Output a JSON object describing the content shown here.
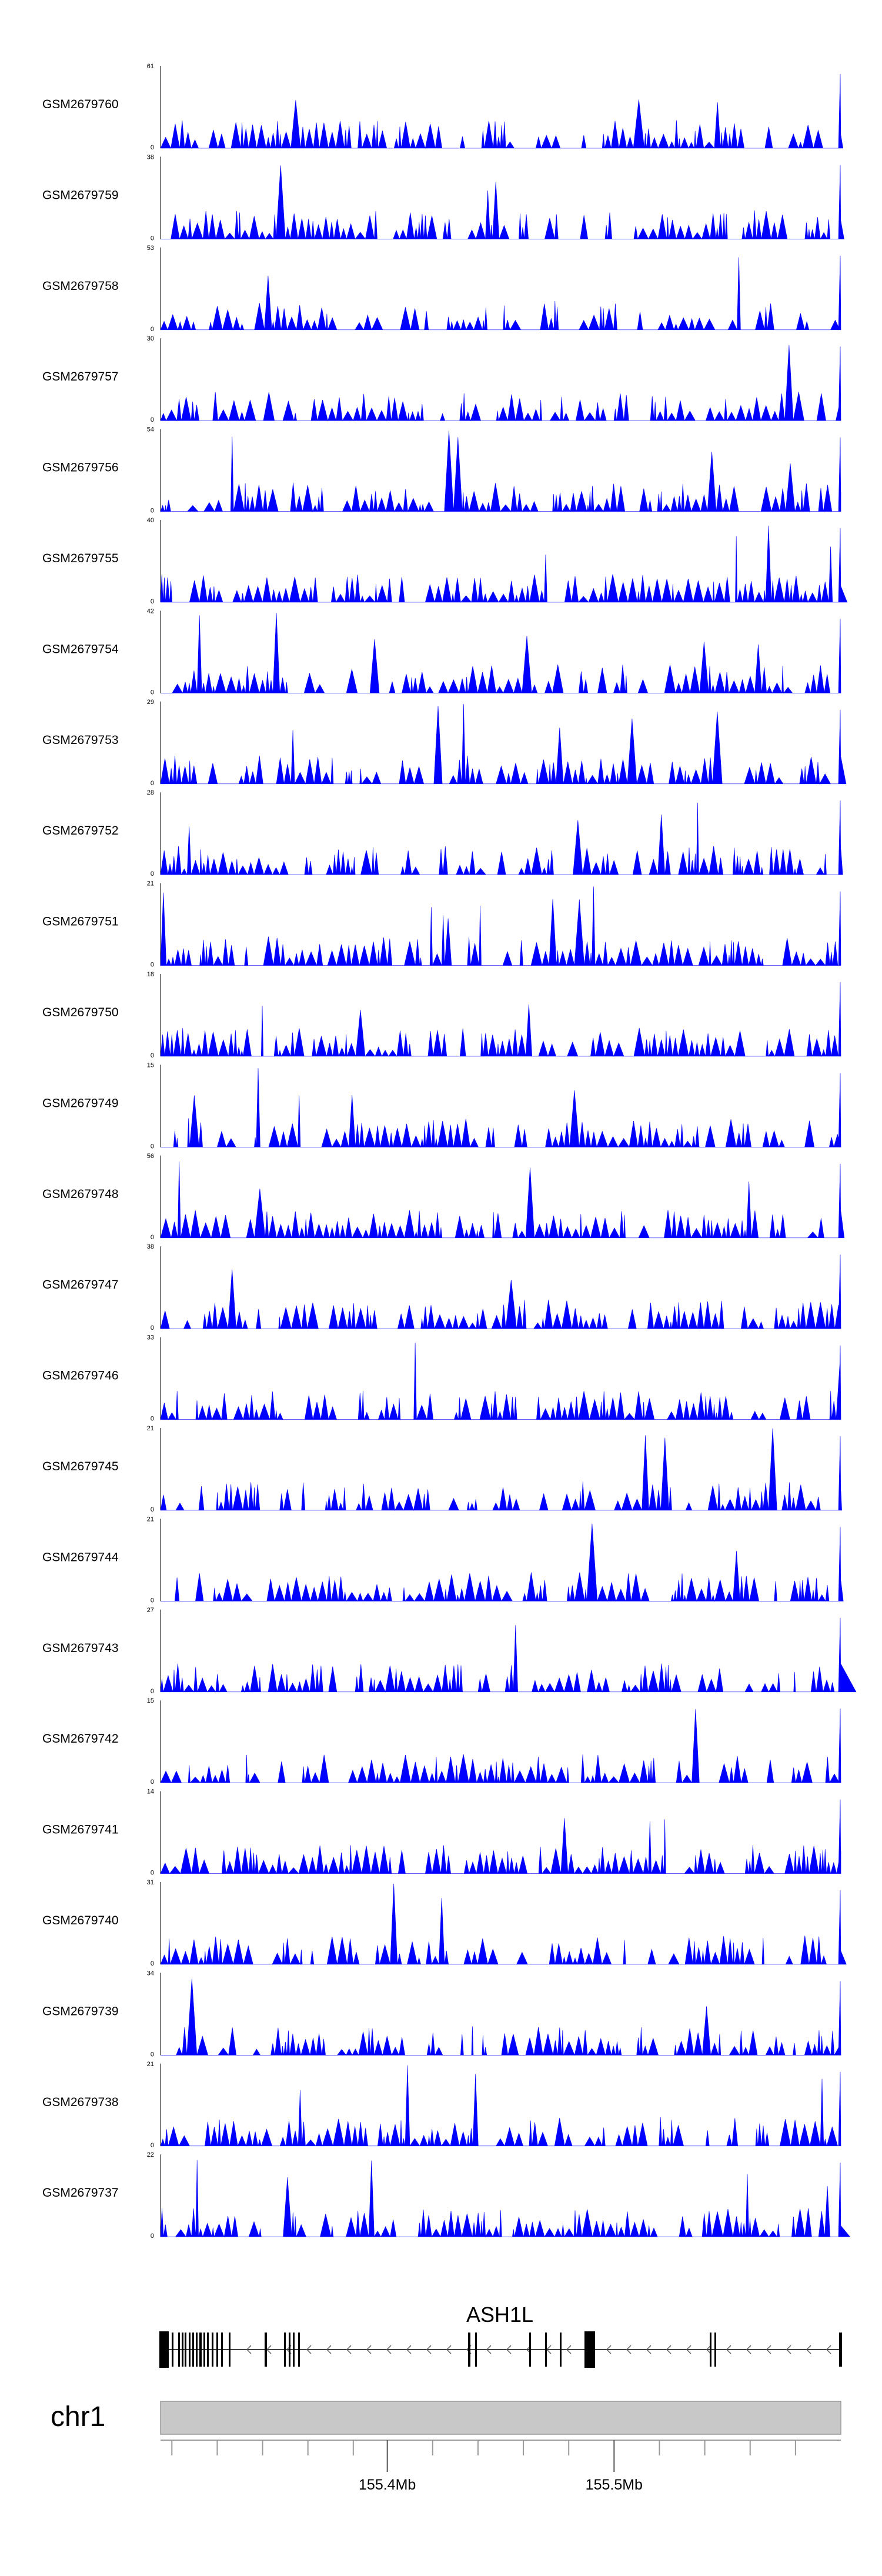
{
  "chart_data": {
    "type": "area",
    "title": "",
    "track_color": "#0000ff",
    "region": {
      "chrom": "chr1",
      "start": 155.3,
      "end": 155.6,
      "unit": "Mb"
    },
    "tracks": [
      {
        "name": "GSM2679760",
        "ymax": "61",
        "ymin": "0",
        "max_value": 61,
        "seed": 11
      },
      {
        "name": "GSM2679759",
        "ymax": "38",
        "ymin": "0",
        "max_value": 38,
        "seed": 12
      },
      {
        "name": "GSM2679758",
        "ymax": "53",
        "ymin": "0",
        "max_value": 53,
        "seed": 13
      },
      {
        "name": "GSM2679757",
        "ymax": "30",
        "ymin": "0",
        "max_value": 30,
        "seed": 14
      },
      {
        "name": "GSM2679756",
        "ymax": "54",
        "ymin": "0",
        "max_value": 54,
        "seed": 15
      },
      {
        "name": "GSM2679755",
        "ymax": "40",
        "ymin": "0",
        "max_value": 40,
        "seed": 16
      },
      {
        "name": "GSM2679754",
        "ymax": "42",
        "ymin": "0",
        "max_value": 42,
        "seed": 17
      },
      {
        "name": "GSM2679753",
        "ymax": "29",
        "ymin": "0",
        "max_value": 29,
        "seed": 18
      },
      {
        "name": "GSM2679752",
        "ymax": "28",
        "ymin": "0",
        "max_value": 28,
        "seed": 19
      },
      {
        "name": "GSM2679751",
        "ymax": "21",
        "ymin": "0",
        "max_value": 21,
        "seed": 20
      },
      {
        "name": "GSM2679750",
        "ymax": "18",
        "ymin": "0",
        "max_value": 18,
        "seed": 21
      },
      {
        "name": "GSM2679749",
        "ymax": "15",
        "ymin": "0",
        "max_value": 15,
        "seed": 22
      },
      {
        "name": "GSM2679748",
        "ymax": "56",
        "ymin": "0",
        "max_value": 56,
        "seed": 23
      },
      {
        "name": "GSM2679747",
        "ymax": "38",
        "ymin": "0",
        "max_value": 38,
        "seed": 24
      },
      {
        "name": "GSM2679746",
        "ymax": "33",
        "ymin": "0",
        "max_value": 33,
        "seed": 25
      },
      {
        "name": "GSM2679745",
        "ymax": "21",
        "ymin": "0",
        "max_value": 21,
        "seed": 26
      },
      {
        "name": "GSM2679744",
        "ymax": "21",
        "ymin": "0",
        "max_value": 21,
        "seed": 27
      },
      {
        "name": "GSM2679743",
        "ymax": "27",
        "ymin": "0",
        "max_value": 27,
        "seed": 28
      },
      {
        "name": "GSM2679742",
        "ymax": "15",
        "ymin": "0",
        "max_value": 15,
        "seed": 29
      },
      {
        "name": "GSM2679741",
        "ymax": "14",
        "ymin": "0",
        "max_value": 14,
        "seed": 30
      },
      {
        "name": "GSM2679740",
        "ymax": "31",
        "ymin": "0",
        "max_value": 31,
        "seed": 31
      },
      {
        "name": "GSM2679739",
        "ymax": "34",
        "ymin": "0",
        "max_value": 34,
        "seed": 32
      },
      {
        "name": "GSM2679738",
        "ymax": "21",
        "ymin": "0",
        "max_value": 21,
        "seed": 33
      },
      {
        "name": "GSM2679737",
        "ymax": "22",
        "ymin": "0",
        "max_value": 22,
        "seed": 34
      }
    ],
    "gene": {
      "name": "ASH1L",
      "strand": "-"
    },
    "ideogram": {
      "chrom_label": "chr1"
    },
    "axis": {
      "tick_labels": [
        {
          "label": "155.4Mb",
          "value": 155.4
        },
        {
          "label": "155.5Mb",
          "value": 155.5
        }
      ],
      "minor_ticks": [
        155.305,
        155.325,
        155.345,
        155.365,
        155.385,
        155.42,
        155.44,
        155.46,
        155.48,
        155.52,
        155.54,
        155.56,
        155.58
      ]
    }
  }
}
